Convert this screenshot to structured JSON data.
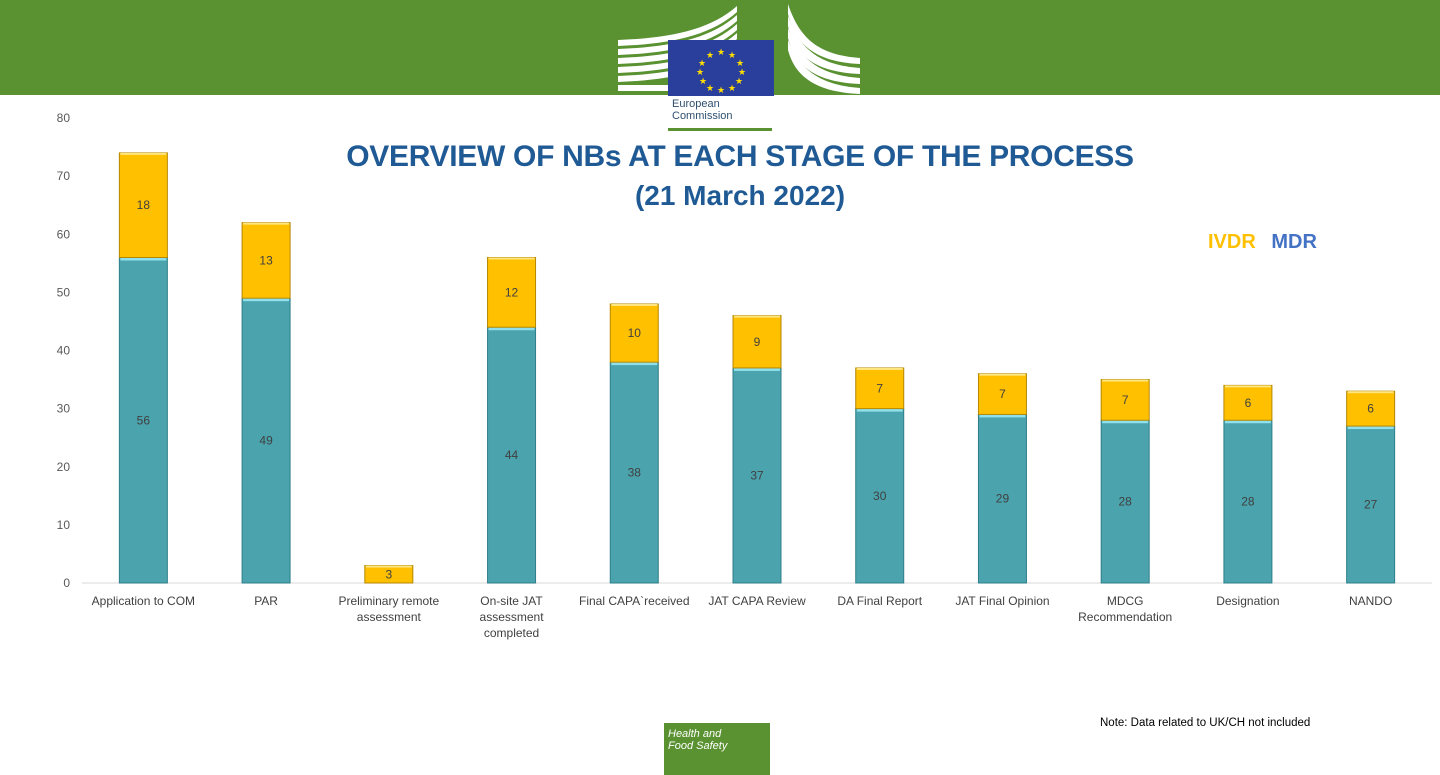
{
  "header": {
    "logo_line1": "European",
    "logo_line2": "Commission"
  },
  "footer": {
    "badge_line1": "Health and",
    "badge_line2": "Food Safety",
    "note": "Note: Data related to UK/CH not included"
  },
  "colors": {
    "green": "#5a9131",
    "mdr_bar": "#4ba3ad",
    "ivdr_bar": "#ffc000",
    "title": "#1f5a95",
    "legend_ivdr": "#ffc000",
    "legend_mdr": "#4472c4"
  },
  "chart_data": {
    "type": "bar",
    "stacked": true,
    "title": "OVERVIEW OF NBs AT EACH STAGE OF THE PROCESS",
    "subtitle": "(21 March 2022)",
    "xlabel": "",
    "ylabel": "",
    "ylim": [
      0,
      80
    ],
    "yticks": [
      0,
      10,
      20,
      30,
      40,
      50,
      60,
      70,
      80
    ],
    "grid": false,
    "legend_position": "top-right",
    "categories": [
      [
        "Application to COM"
      ],
      [
        "PAR"
      ],
      [
        "Preliminary remote",
        "assessment"
      ],
      [
        "On-site JAT",
        "assessment",
        "completed"
      ],
      [
        "Final CAPA`received"
      ],
      [
        "JAT CAPA Review"
      ],
      [
        "DA Final Report"
      ],
      [
        "JAT Final Opinion"
      ],
      [
        "MDCG",
        "Recommendation"
      ],
      [
        "Designation"
      ],
      [
        "NANDO"
      ]
    ],
    "series": [
      {
        "name": "MDR",
        "values": [
          56,
          49,
          0,
          44,
          38,
          37,
          30,
          29,
          28,
          28,
          27
        ]
      },
      {
        "name": "IVDR",
        "values": [
          18,
          13,
          3,
          12,
          10,
          9,
          7,
          7,
          7,
          6,
          6
        ]
      }
    ]
  }
}
